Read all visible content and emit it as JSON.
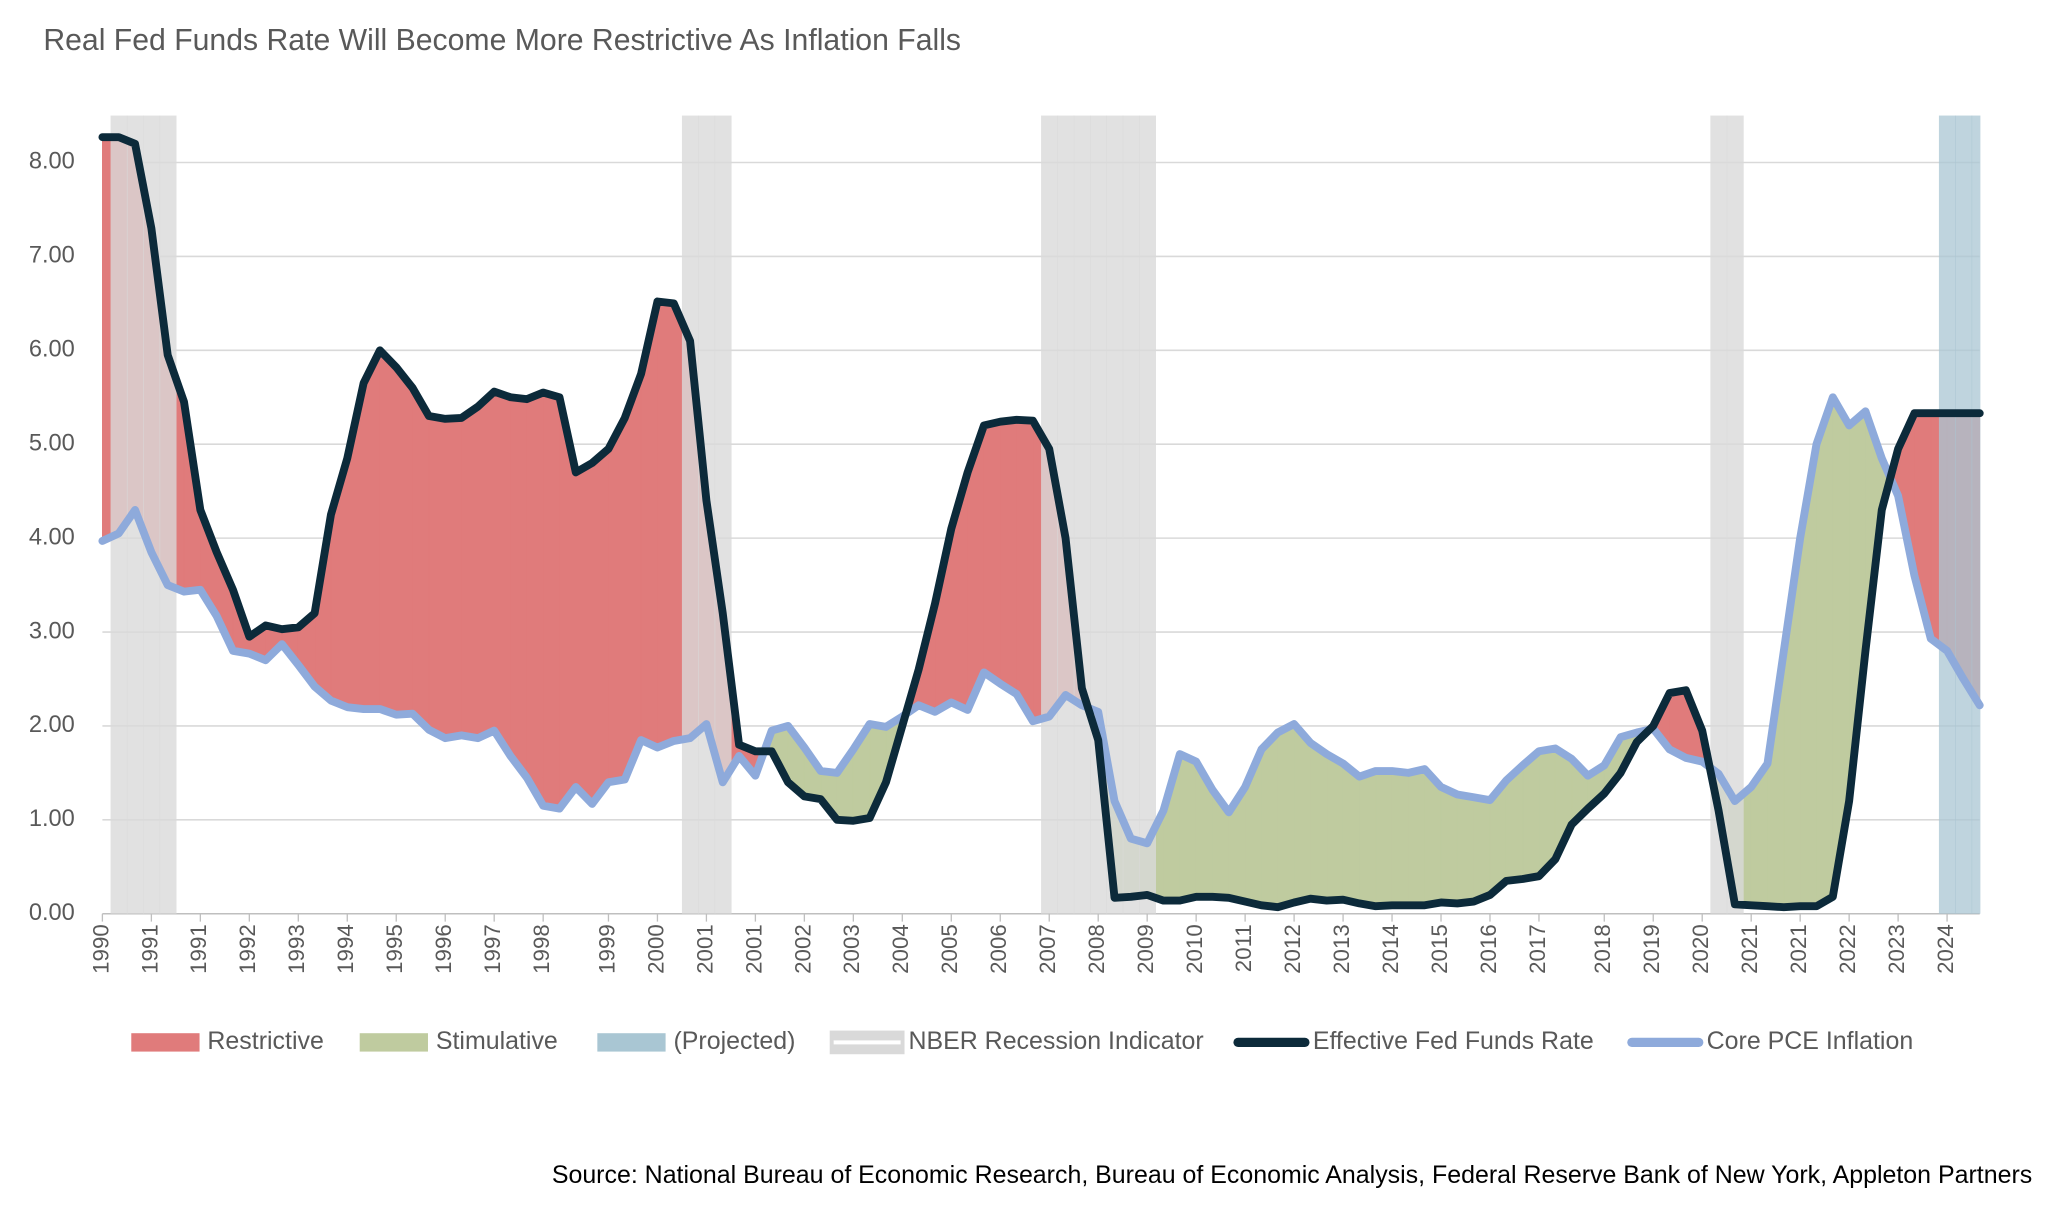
{
  "chart_data": {
    "type": "line",
    "title": "Real Fed Funds Rate Will Become More Restrictive As Inflation Falls",
    "source": "Source: National Bureau of Economic Research, Bureau of Economic Analysis, Federal Reserve Bank of New York, Appleton Partners",
    "categories": [
      "1990",
      null,
      null,
      "1991",
      null,
      null,
      "1991",
      null,
      null,
      "1992",
      null,
      null,
      "1993",
      null,
      null,
      "1994",
      null,
      null,
      "1995",
      null,
      null,
      "1996",
      null,
      null,
      "1997",
      null,
      null,
      "1998",
      null,
      null,
      null,
      "1999",
      null,
      null,
      "2000",
      null,
      null,
      "2001",
      null,
      null,
      "2001",
      null,
      null,
      "2002",
      null,
      null,
      "2003",
      null,
      null,
      "2004",
      null,
      null,
      "2005",
      null,
      null,
      "2006",
      null,
      null,
      "2007",
      null,
      null,
      "2008",
      null,
      null,
      "2009",
      null,
      null,
      "2010",
      null,
      null,
      "2011",
      null,
      null,
      "2012",
      null,
      null,
      "2013",
      null,
      null,
      "2014",
      null,
      null,
      "2015",
      null,
      null,
      "2016",
      null,
      null,
      "2017",
      null,
      null,
      null,
      "2018",
      null,
      null,
      "2019",
      null,
      null,
      "2020",
      null,
      null,
      "2021",
      null,
      null,
      "2021",
      null,
      null,
      "2022",
      null,
      null,
      "2023",
      null,
      null,
      "2024",
      null,
      null
    ],
    "series": [
      {
        "name": "Effective Fed Funds Rate",
        "color": "#0c2a3a",
        "values": [
          8.27,
          8.27,
          8.2,
          7.3,
          5.95,
          5.45,
          4.3,
          3.85,
          3.45,
          2.95,
          3.07,
          3.03,
          3.05,
          3.2,
          4.25,
          4.85,
          5.65,
          6.0,
          5.82,
          5.6,
          5.3,
          5.27,
          5.28,
          5.4,
          5.56,
          5.5,
          5.48,
          5.55,
          5.5,
          4.7,
          4.8,
          4.95,
          5.28,
          5.75,
          6.52,
          6.5,
          6.1,
          4.4,
          3.2,
          1.8,
          1.73,
          1.73,
          1.4,
          1.25,
          1.22,
          1.0,
          0.99,
          1.02,
          1.4,
          2.0,
          2.6,
          3.3,
          4.1,
          4.7,
          5.2,
          5.24,
          5.26,
          5.25,
          4.95,
          4.0,
          2.4,
          1.85,
          0.17,
          0.18,
          0.2,
          0.14,
          0.14,
          0.18,
          0.18,
          0.17,
          0.13,
          0.09,
          0.07,
          0.12,
          0.16,
          0.14,
          0.15,
          0.11,
          0.08,
          0.09,
          0.09,
          0.09,
          0.12,
          0.11,
          0.13,
          0.2,
          0.35,
          0.37,
          0.4,
          0.58,
          0.95,
          1.12,
          1.28,
          1.5,
          1.83,
          2.0,
          2.35,
          2.38,
          1.95,
          1.1,
          0.1,
          0.09,
          0.08,
          0.07,
          0.08,
          0.08,
          0.18,
          1.2,
          2.8,
          4.3,
          4.95,
          5.33,
          5.33,
          5.33,
          5.33,
          5.33
        ]
      },
      {
        "name": "Core PCE Inflation",
        "color": "#8eaadb",
        "values": [
          3.97,
          4.05,
          4.3,
          3.85,
          3.5,
          3.43,
          3.45,
          3.17,
          2.8,
          2.77,
          2.7,
          2.87,
          2.65,
          2.42,
          2.27,
          2.2,
          2.18,
          2.18,
          2.12,
          2.13,
          1.96,
          1.87,
          1.9,
          1.87,
          1.95,
          1.68,
          1.45,
          1.15,
          1.12,
          1.35,
          1.17,
          1.4,
          1.43,
          1.85,
          1.77,
          1.84,
          1.87,
          2.02,
          1.4,
          1.68,
          1.47,
          1.95,
          2.0,
          1.77,
          1.52,
          1.5,
          1.75,
          2.02,
          1.99,
          2.1,
          2.22,
          2.15,
          2.25,
          2.17,
          2.57,
          2.45,
          2.34,
          2.05,
          2.1,
          2.33,
          2.22,
          2.15,
          1.2,
          0.8,
          0.75,
          1.1,
          1.7,
          1.62,
          1.32,
          1.08,
          1.35,
          1.75,
          1.93,
          2.02,
          1.82,
          1.7,
          1.6,
          1.46,
          1.52,
          1.52,
          1.5,
          1.54,
          1.35,
          1.27,
          1.24,
          1.21,
          1.42,
          1.58,
          1.73,
          1.76,
          1.65,
          1.47,
          1.58,
          1.88,
          1.93,
          1.97,
          1.75,
          1.66,
          1.62,
          1.49,
          1.2,
          1.35,
          1.6,
          2.8,
          4.0,
          5.0,
          5.5,
          5.2,
          5.35,
          4.85,
          4.45,
          3.6,
          2.93,
          2.8,
          2.5,
          2.22
        ]
      }
    ],
    "areas": [
      {
        "name": "Restrictive",
        "color": "#e07b7b"
      },
      {
        "name": "Stimulative",
        "color": "#bfcb9f"
      }
    ],
    "bands": [
      {
        "name": "(Projected)",
        "color": "#a9c6d3",
        "values": [
          0,
          0,
          0,
          0,
          0,
          0,
          0,
          0,
          0,
          0,
          0,
          0,
          0,
          0,
          0,
          0,
          0,
          0,
          0,
          0,
          0,
          0,
          0,
          0,
          0,
          0,
          0,
          0,
          0,
          0,
          0,
          0,
          0,
          0,
          0,
          0,
          0,
          0,
          0,
          0,
          0,
          0,
          0,
          0,
          0,
          0,
          0,
          0,
          0,
          0,
          0,
          0,
          0,
          0,
          0,
          0,
          0,
          0,
          0,
          0,
          0,
          0,
          0,
          0,
          0,
          0,
          0,
          0,
          0,
          0,
          0,
          0,
          0,
          0,
          0,
          0,
          0,
          0,
          0,
          0,
          0,
          0,
          0,
          0,
          0,
          0,
          0,
          0,
          0,
          0,
          0,
          0,
          0,
          0,
          0,
          0,
          0,
          0,
          0,
          0,
          0,
          0,
          0,
          0,
          0,
          0,
          0,
          0,
          0,
          0,
          0,
          0,
          0,
          1,
          1,
          1
        ]
      },
      {
        "name": "NBER Recession Indicator",
        "color": "#d9d9d9",
        "values": [
          0,
          1,
          1,
          1,
          1,
          0,
          0,
          0,
          0,
          0,
          0,
          0,
          0,
          0,
          0,
          0,
          0,
          0,
          0,
          0,
          0,
          0,
          0,
          0,
          0,
          0,
          0,
          0,
          0,
          0,
          0,
          0,
          0,
          0,
          0,
          0,
          1,
          1,
          1,
          0,
          0,
          0,
          0,
          0,
          0,
          0,
          0,
          0,
          0,
          0,
          0,
          0,
          0,
          0,
          0,
          0,
          0,
          0,
          1,
          1,
          1,
          1,
          1,
          1,
          1,
          0,
          0,
          0,
          0,
          0,
          0,
          0,
          0,
          0,
          0,
          0,
          0,
          0,
          0,
          0,
          0,
          0,
          0,
          0,
          0,
          0,
          0,
          0,
          0,
          0,
          0,
          0,
          0,
          0,
          0,
          0,
          0,
          0,
          0,
          1,
          1,
          0,
          0,
          0,
          0,
          0,
          0,
          0,
          0,
          0,
          0,
          0,
          0,
          0,
          0,
          0
        ]
      }
    ],
    "ylim": [
      0,
      8.5
    ],
    "yticks": [
      {
        "value": 0,
        "label": "0.00"
      },
      {
        "value": 1,
        "label": "1.00"
      },
      {
        "value": 2,
        "label": "2.00"
      },
      {
        "value": 3,
        "label": "3.00"
      },
      {
        "value": 4,
        "label": "4.00"
      },
      {
        "value": 5,
        "label": "5.00"
      },
      {
        "value": 6,
        "label": "6.00"
      },
      {
        "value": 7,
        "label": "7.00"
      },
      {
        "value": 8,
        "label": "8.00"
      }
    ],
    "grid": true
  }
}
